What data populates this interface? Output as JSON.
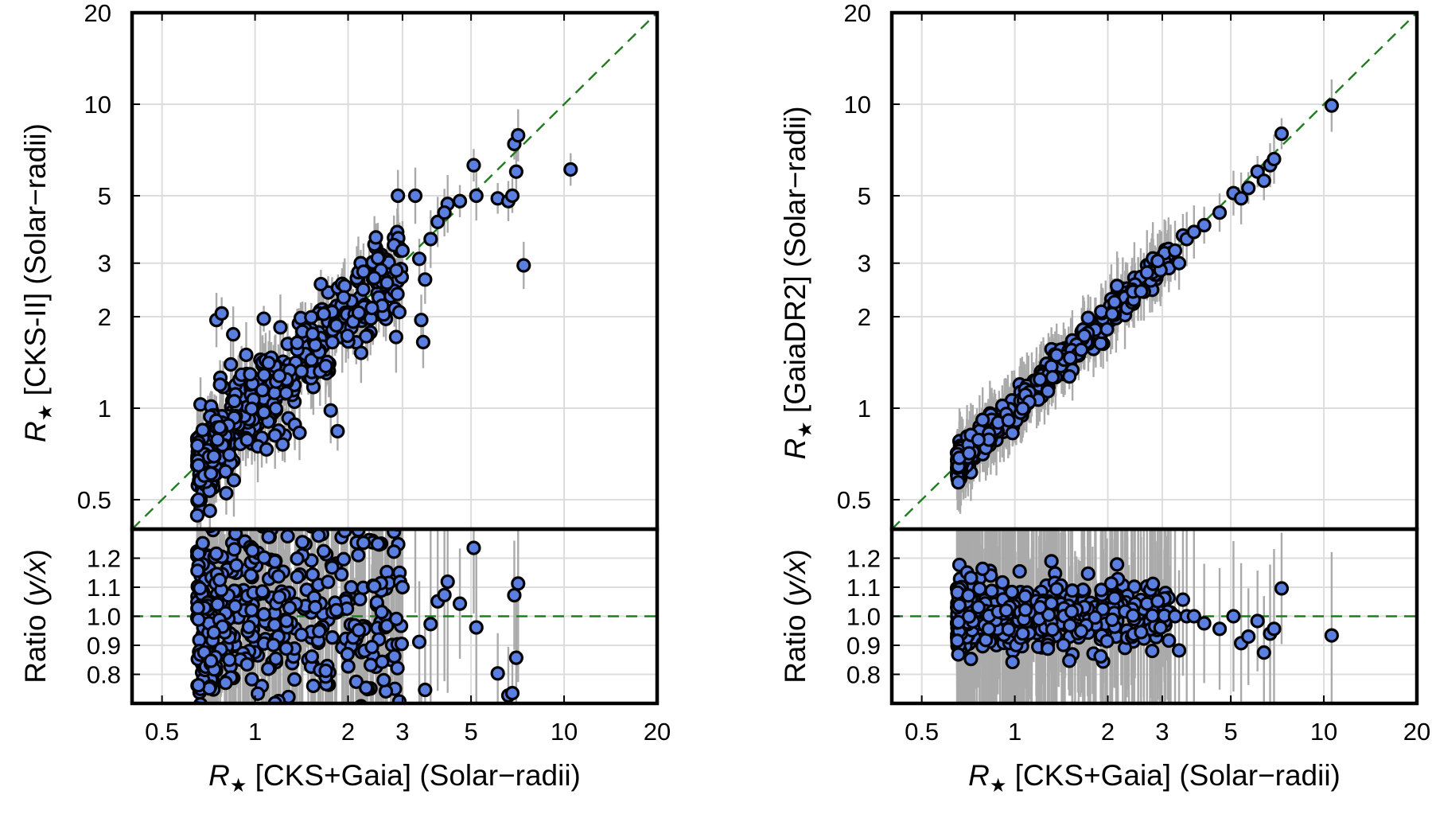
{
  "colors": {
    "marker_fill": "#5b7fe0",
    "marker_edge": "#000000",
    "errorbar": "#aaaaaa",
    "reference_line": "#1e7d1e",
    "grid": "#dddddd",
    "frame": "#000000"
  },
  "chart_data": [
    {
      "type": "scatter",
      "panel": "left",
      "xlabel": {
        "symbol": "R",
        "sub": "★",
        "rest": "[CKS+Gaia] (Solar−radii)"
      },
      "top": {
        "ylabel": {
          "symbol": "R",
          "sub": "★",
          "rest": "[CKS-II] (Solar−radii)"
        },
        "xscale": "log",
        "yscale": "log",
        "xlim": [
          0.4,
          20
        ],
        "ylim": [
          0.4,
          20
        ],
        "yticks": [
          {
            "v": 0.5,
            "label": "0.5"
          },
          {
            "v": 1,
            "label": "1"
          },
          {
            "v": 2,
            "label": "2"
          },
          {
            "v": 3,
            "label": "3"
          },
          {
            "v": 5,
            "label": "5"
          },
          {
            "v": 10,
            "label": "10"
          },
          {
            "v": 20,
            "label": "20"
          }
        ],
        "reference": "y = x (dashed)",
        "cloud": {
          "n": 420,
          "x_range": [
            0.65,
            3.0
          ],
          "log_scatter": 0.085,
          "seed": 11
        },
        "points": [
          {
            "x": 0.75,
            "y": 1.95
          },
          {
            "x": 0.78,
            "y": 2.05
          },
          {
            "x": 0.85,
            "y": 1.75
          },
          {
            "x": 1.85,
            "y": 0.84
          },
          {
            "x": 2.9,
            "y": 5.0
          },
          {
            "x": 3.3,
            "y": 5.0
          },
          {
            "x": 3.4,
            "y": 3.1
          },
          {
            "x": 3.45,
            "y": 1.95
          },
          {
            "x": 3.5,
            "y": 1.65
          },
          {
            "x": 3.55,
            "y": 2.65
          },
          {
            "x": 4.2,
            "y": 4.7
          },
          {
            "x": 4.6,
            "y": 4.8
          },
          {
            "x": 5.1,
            "y": 6.3
          },
          {
            "x": 5.2,
            "y": 5.0
          },
          {
            "x": 6.1,
            "y": 4.9
          },
          {
            "x": 6.6,
            "y": 4.8
          },
          {
            "x": 6.8,
            "y": 5.0
          },
          {
            "x": 6.9,
            "y": 7.4
          },
          {
            "x": 7.0,
            "y": 6.0
          },
          {
            "x": 7.1,
            "y": 7.9
          },
          {
            "x": 7.4,
            "y": 2.95
          },
          {
            "x": 10.5,
            "y": 6.1
          },
          {
            "x": 3.0,
            "y": 3.3
          },
          {
            "x": 3.7,
            "y": 3.6
          },
          {
            "x": 3.9,
            "y": 4.1
          },
          {
            "x": 4.1,
            "y": 4.4
          }
        ]
      },
      "bottom": {
        "ylabel": {
          "text": "Ratio (",
          "italic": "y/x",
          "end": ")"
        },
        "xscale": "log",
        "xlim": [
          0.4,
          20
        ],
        "ylim": [
          0.7,
          1.3
        ],
        "xticks": [
          {
            "v": 0.5,
            "label": "0.5"
          },
          {
            "v": 1,
            "label": "1"
          },
          {
            "v": 2,
            "label": "2"
          },
          {
            "v": 3,
            "label": "3"
          },
          {
            "v": 5,
            "label": "5"
          },
          {
            "v": 10,
            "label": "10"
          },
          {
            "v": 20,
            "label": "20"
          }
        ],
        "yticks": [
          {
            "v": 0.8,
            "label": "0.8"
          },
          {
            "v": 0.9,
            "label": "0.9"
          },
          {
            "v": 1.0,
            "label": "1.0"
          },
          {
            "v": 1.1,
            "label": "1.1"
          },
          {
            "v": 1.2,
            "label": "1.2"
          }
        ],
        "reference": "y = 1.0 (dashed)"
      }
    },
    {
      "type": "scatter",
      "panel": "right",
      "xlabel": {
        "symbol": "R",
        "sub": "★",
        "rest": "[CKS+Gaia] (Solar−radii)"
      },
      "top": {
        "ylabel": {
          "symbol": "R",
          "sub": "★",
          "rest": "[GaiaDR2] (Solar−radii)"
        },
        "xscale": "log",
        "yscale": "log",
        "xlim": [
          0.4,
          20
        ],
        "ylim": [
          0.4,
          20
        ],
        "yticks": [
          {
            "v": 0.5,
            "label": "0.5"
          },
          {
            "v": 1,
            "label": "1"
          },
          {
            "v": 2,
            "label": "2"
          },
          {
            "v": 3,
            "label": "3"
          },
          {
            "v": 5,
            "label": "5"
          },
          {
            "v": 10,
            "label": "10"
          },
          {
            "v": 20,
            "label": "20"
          }
        ],
        "reference": "y = x (dashed)",
        "cloud": {
          "n": 420,
          "x_range": [
            0.65,
            3.2
          ],
          "log_scatter": 0.026,
          "seed": 23
        },
        "points": [
          {
            "x": 3.3,
            "y": 3.3
          },
          {
            "x": 3.5,
            "y": 3.7
          },
          {
            "x": 3.6,
            "y": 3.6
          },
          {
            "x": 3.8,
            "y": 3.8
          },
          {
            "x": 3.4,
            "y": 3.0
          },
          {
            "x": 4.1,
            "y": 4.0
          },
          {
            "x": 4.6,
            "y": 4.4
          },
          {
            "x": 5.1,
            "y": 5.1
          },
          {
            "x": 5.4,
            "y": 4.9
          },
          {
            "x": 5.7,
            "y": 5.3
          },
          {
            "x": 6.1,
            "y": 6.0
          },
          {
            "x": 6.4,
            "y": 5.6
          },
          {
            "x": 6.7,
            "y": 6.3
          },
          {
            "x": 6.9,
            "y": 6.6
          },
          {
            "x": 7.3,
            "y": 8.0
          },
          {
            "x": 10.6,
            "y": 9.9
          },
          {
            "x": 2.9,
            "y": 3.05
          }
        ]
      },
      "bottom": {
        "ylabel": {
          "text": "Ratio (",
          "italic": "y/x",
          "end": ")"
        },
        "xscale": "log",
        "xlim": [
          0.4,
          20
        ],
        "ylim": [
          0.7,
          1.3
        ],
        "xticks": [
          {
            "v": 0.5,
            "label": "0.5"
          },
          {
            "v": 1,
            "label": "1"
          },
          {
            "v": 2,
            "label": "2"
          },
          {
            "v": 3,
            "label": "3"
          },
          {
            "v": 5,
            "label": "5"
          },
          {
            "v": 10,
            "label": "10"
          },
          {
            "v": 20,
            "label": "20"
          }
        ],
        "yticks": [
          {
            "v": 0.8,
            "label": "0.8"
          },
          {
            "v": 0.9,
            "label": "0.9"
          },
          {
            "v": 1.0,
            "label": "1.0"
          },
          {
            "v": 1.1,
            "label": "1.1"
          },
          {
            "v": 1.2,
            "label": "1.2"
          }
        ],
        "reference": "y = 1.0 (dashed)"
      }
    }
  ]
}
